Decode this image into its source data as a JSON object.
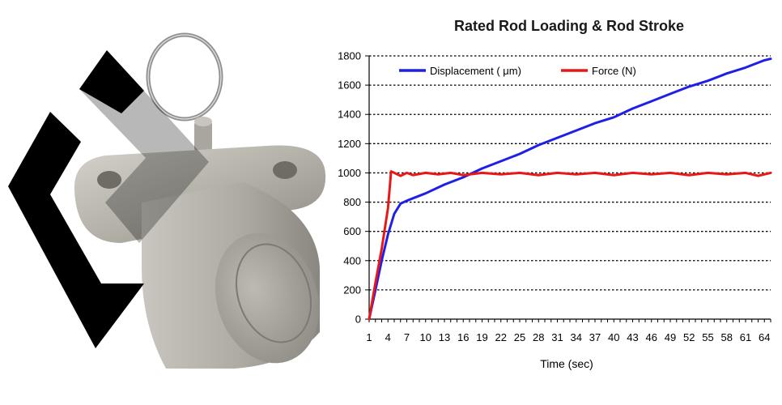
{
  "colors": {
    "displacement": "#1f1fe6",
    "force": "#e81818",
    "grid": "#000000",
    "logo": "#000000",
    "product_body": "#b9b6ae"
  },
  "product_image": {
    "logo_icon": "abstract-black-logo-icon",
    "part_icon": "hydraulic-tensioner-icon"
  },
  "chart_data": {
    "type": "line",
    "title": "Rated Rod Loading & Rod Stroke",
    "xlabel": "Time (sec)",
    "ylabel": "",
    "ylim": [
      0,
      1800
    ],
    "yticks": [
      0,
      200,
      400,
      600,
      800,
      1000,
      1200,
      1400,
      1600,
      1800
    ],
    "xlim": [
      1,
      65
    ],
    "xticks": [
      1,
      4,
      7,
      10,
      13,
      16,
      19,
      22,
      25,
      28,
      31,
      34,
      37,
      40,
      43,
      46,
      49,
      52,
      55,
      58,
      61,
      64
    ],
    "grid": "horizontal-dotted",
    "legend_position": "top",
    "series": [
      {
        "name": "Displacement ( μm)",
        "color": "#1f1fe6",
        "points": [
          [
            1,
            0
          ],
          [
            2,
            200
          ],
          [
            3,
            400
          ],
          [
            4,
            580
          ],
          [
            5,
            720
          ],
          [
            6,
            790
          ],
          [
            7,
            810
          ],
          [
            10,
            860
          ],
          [
            13,
            920
          ],
          [
            16,
            970
          ],
          [
            19,
            1030
          ],
          [
            22,
            1080
          ],
          [
            25,
            1130
          ],
          [
            28,
            1190
          ],
          [
            31,
            1240
          ],
          [
            34,
            1290
          ],
          [
            37,
            1340
          ],
          [
            40,
            1380
          ],
          [
            43,
            1440
          ],
          [
            46,
            1490
          ],
          [
            49,
            1540
          ],
          [
            52,
            1590
          ],
          [
            55,
            1630
          ],
          [
            58,
            1680
          ],
          [
            61,
            1720
          ],
          [
            64,
            1770
          ],
          [
            65,
            1780
          ]
        ]
      },
      {
        "name": "Force (N)",
        "color": "#e81818",
        "points": [
          [
            1,
            0
          ],
          [
            2,
            250
          ],
          [
            3,
            480
          ],
          [
            4,
            760
          ],
          [
            4.5,
            1010
          ],
          [
            5,
            1000
          ],
          [
            6,
            980
          ],
          [
            7,
            1000
          ],
          [
            8,
            985
          ],
          [
            10,
            1000
          ],
          [
            12,
            990
          ],
          [
            14,
            1000
          ],
          [
            16,
            985
          ],
          [
            19,
            1000
          ],
          [
            22,
            990
          ],
          [
            25,
            1000
          ],
          [
            28,
            985
          ],
          [
            31,
            1000
          ],
          [
            34,
            990
          ],
          [
            37,
            1000
          ],
          [
            40,
            985
          ],
          [
            43,
            1000
          ],
          [
            46,
            990
          ],
          [
            49,
            1000
          ],
          [
            52,
            985
          ],
          [
            55,
            1000
          ],
          [
            58,
            990
          ],
          [
            61,
            1000
          ],
          [
            63,
            980
          ],
          [
            65,
            1000
          ]
        ]
      }
    ]
  }
}
